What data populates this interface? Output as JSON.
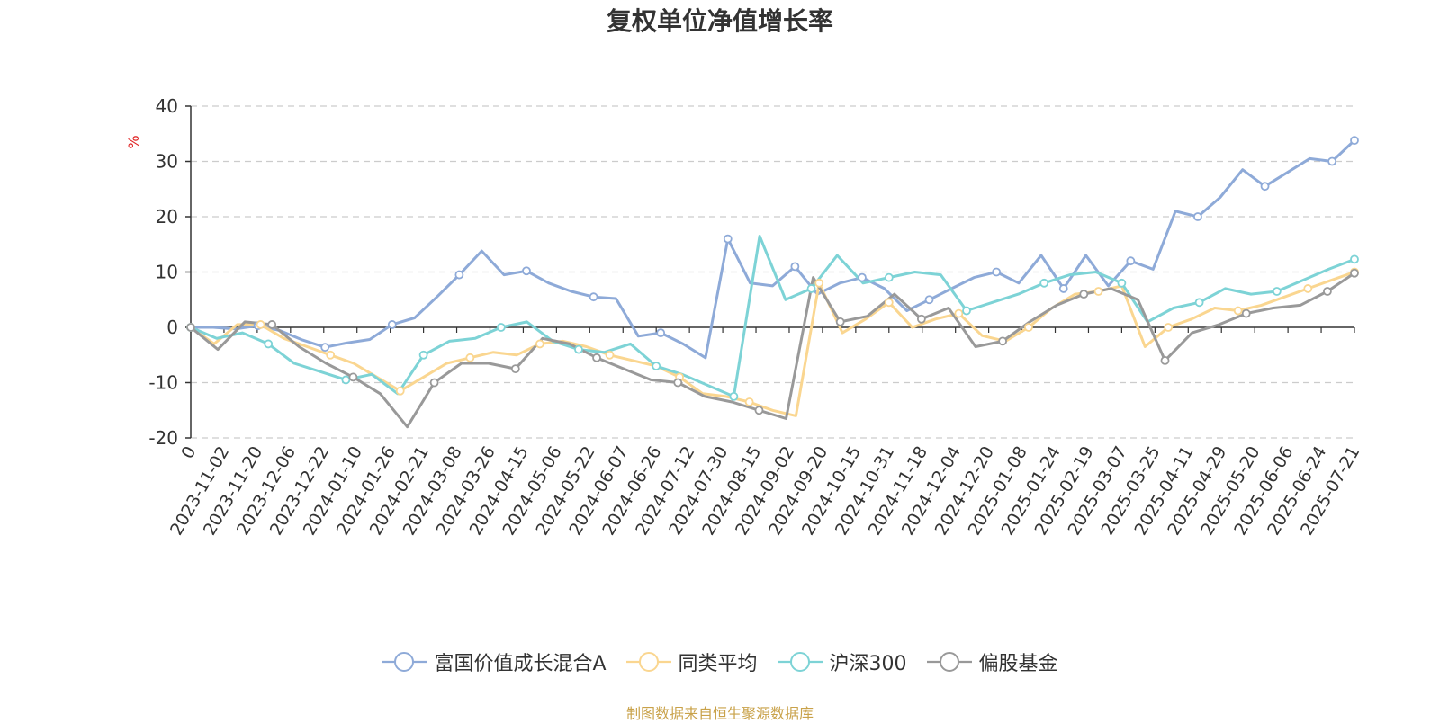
{
  "chart_data": {
    "type": "line",
    "title": "复权单位净值增长率",
    "ylabel": "%",
    "ylim": [
      -20,
      40
    ],
    "yticks": [
      40,
      30,
      20,
      10,
      0,
      -10,
      -20
    ],
    "grid": true,
    "legend_position": "bottom",
    "x_ticks": [
      "0",
      "2023-11-02",
      "2023-11-20",
      "2023-12-06",
      "2023-12-22",
      "2024-01-10",
      "2024-01-26",
      "2024-02-21",
      "2024-03-08",
      "2024-03-26",
      "2024-04-15",
      "2024-05-06",
      "2024-05-22",
      "2024-06-07",
      "2024-06-26",
      "2024-07-12",
      "2024-07-30",
      "2024-08-15",
      "2024-09-02",
      "2024-09-20",
      "2024-10-15",
      "2024-10-31",
      "2024-11-18",
      "2024-12-04",
      "2024-12-20",
      "2025-01-08",
      "2025-01-24",
      "2025-02-19",
      "2025-03-07",
      "2025-03-25",
      "2025-04-11",
      "2025-04-29",
      "2025-05-20",
      "2025-06-06",
      "2025-06-24",
      "2025-07-21"
    ],
    "series": [
      {
        "name": "富国价值成长混合A",
        "color": "#8eaad8",
        "values": [
          0,
          0,
          -0.3,
          0.3,
          -0.6,
          -2.3,
          -3.6,
          -2.8,
          -2.2,
          0.5,
          1.7,
          5.5,
          9.5,
          13.8,
          9.5,
          10.2,
          8.0,
          6.5,
          5.5,
          5.2,
          -1.6,
          -1.0,
          -3.0,
          -5.5,
          16.0,
          8.0,
          7.5,
          11.0,
          6.0,
          8.0,
          9.0,
          7.0,
          3.0,
          5.0,
          7.0,
          9.0,
          10.0,
          8.0,
          13.0,
          7.0,
          13.0,
          7.5,
          12.0,
          10.5,
          21.0,
          20.0,
          23.5,
          28.5,
          25.5,
          28.0,
          30.5,
          30.0,
          33.8
        ]
      },
      {
        "name": "同类平均",
        "color": "#fad690",
        "values": [
          0,
          -3.0,
          0.5,
          0.5,
          -2.0,
          -3.5,
          -5.0,
          -6.5,
          -9.0,
          -11.5,
          -9.0,
          -6.5,
          -5.5,
          -4.5,
          -5.0,
          -3.0,
          -2.5,
          -3.5,
          -5.0,
          -6.0,
          -7.0,
          -9.0,
          -12.0,
          -12.5,
          -13.5,
          -15.0,
          -16.0,
          8.0,
          -1.0,
          1.5,
          4.5,
          0.0,
          1.5,
          2.5,
          -1.5,
          -2.5,
          0.0,
          3.5,
          6.0,
          6.5,
          7.5,
          -3.5,
          0.0,
          1.5,
          3.5,
          3.0,
          4.0,
          5.5,
          7.0,
          8.5,
          10.0
        ]
      },
      {
        "name": "沪深300",
        "color": "#7dd3d6",
        "values": [
          0,
          -2.0,
          -1.0,
          -3.0,
          -6.5,
          -8.0,
          -9.5,
          -8.5,
          -12.0,
          -5.0,
          -2.5,
          -2.0,
          0.0,
          1.0,
          -2.5,
          -4.0,
          -4.5,
          -3.0,
          -7.0,
          -8.5,
          -10.5,
          -12.5,
          16.5,
          5.0,
          7.0,
          13.0,
          8.0,
          9.0,
          10.0,
          9.5,
          3.0,
          4.5,
          6.0,
          8.0,
          9.5,
          10.0,
          8.0,
          1.0,
          3.5,
          4.5,
          7.0,
          6.0,
          6.5,
          8.5,
          10.5,
          12.3
        ]
      },
      {
        "name": "偏股基金",
        "color": "#999999",
        "values": [
          0,
          -4.0,
          1.0,
          0.5,
          -3.5,
          -6.5,
          -9.0,
          -12.0,
          -18.0,
          -10.0,
          -6.5,
          -6.5,
          -7.5,
          -2.0,
          -3.0,
          -5.5,
          -7.5,
          -9.5,
          -10.0,
          -12.5,
          -13.5,
          -15.0,
          -16.5,
          9.0,
          1.0,
          2.0,
          6.0,
          1.5,
          3.5,
          -3.5,
          -2.5,
          1.0,
          4.0,
          6.0,
          7.0,
          5.0,
          -6.0,
          -1.0,
          0.5,
          2.5,
          3.5,
          4.0,
          6.5,
          9.8
        ]
      }
    ]
  },
  "source_note": "制图数据来自恒生聚源数据库"
}
